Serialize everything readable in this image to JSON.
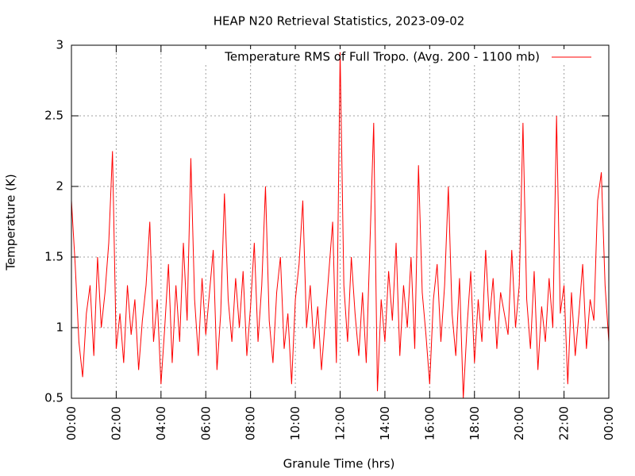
{
  "chart_data": {
    "type": "line",
    "title": "HEAP N20 Retrieval Statistics, 2023-09-02",
    "xlabel": "Granule Time (hrs)",
    "ylabel": "Temperature (K)",
    "x": [
      0,
      10,
      20,
      30,
      40,
      50,
      60,
      70,
      80,
      90,
      100,
      110,
      120,
      130,
      140,
      150,
      160,
      170,
      180,
      190,
      200,
      210,
      220,
      230,
      240,
      250,
      260,
      270,
      280,
      290,
      300,
      310,
      320,
      330,
      340,
      350,
      360,
      370,
      380,
      390,
      400,
      410,
      420,
      430,
      440,
      450,
      460,
      470,
      480,
      490,
      500,
      510,
      520,
      530,
      540,
      550,
      560,
      570,
      580,
      590,
      600,
      610,
      620,
      630,
      640,
      650,
      660,
      670,
      680,
      690,
      700,
      710,
      720,
      730,
      740,
      750,
      760,
      770,
      780,
      790,
      800,
      810,
      820,
      830,
      840,
      850,
      860,
      870,
      880,
      890,
      900,
      910,
      920,
      930,
      940,
      950,
      960,
      970,
      980,
      990,
      1000,
      1010,
      1020,
      1030,
      1040,
      1050,
      1060,
      1070,
      1080,
      1090,
      1100,
      1110,
      1120,
      1130,
      1140,
      1150,
      1160,
      1170,
      1180,
      1190,
      1200,
      1210,
      1220,
      1230,
      1240,
      1250,
      1260,
      1270,
      1280,
      1290,
      1300,
      1310,
      1320,
      1330,
      1340,
      1350,
      1360,
      1370,
      1380,
      1390,
      1400,
      1410,
      1420,
      1430,
      1440
    ],
    "series": [
      {
        "name": "Temperature RMS of Full Tropo. (Avg. 200 - 1100 mb)",
        "color": "#ff0000",
        "values": [
          1.9,
          1.45,
          0.9,
          0.65,
          1.1,
          1.3,
          0.8,
          1.5,
          1.0,
          1.25,
          1.6,
          2.25,
          0.85,
          1.1,
          0.75,
          1.3,
          0.95,
          1.2,
          0.7,
          1.05,
          1.3,
          1.75,
          0.9,
          1.2,
          0.6,
          1.0,
          1.45,
          0.75,
          1.3,
          0.9,
          1.6,
          1.05,
          2.2,
          1.2,
          0.8,
          1.35,
          0.95,
          1.25,
          1.55,
          0.7,
          1.1,
          1.95,
          1.2,
          0.9,
          1.35,
          1.0,
          1.4,
          0.8,
          1.15,
          1.6,
          0.9,
          1.3,
          2.0,
          1.05,
          0.75,
          1.25,
          1.5,
          0.85,
          1.1,
          0.6,
          1.2,
          1.45,
          1.9,
          1.0,
          1.3,
          0.85,
          1.15,
          0.7,
          1.05,
          1.4,
          1.75,
          0.75,
          2.95,
          1.3,
          0.9,
          1.5,
          1.1,
          0.8,
          1.25,
          0.75,
          1.6,
          2.45,
          0.55,
          1.2,
          0.9,
          1.4,
          1.05,
          1.6,
          0.8,
          1.3,
          1.0,
          1.5,
          0.85,
          2.15,
          1.25,
          0.95,
          0.6,
          1.2,
          1.45,
          0.9,
          1.3,
          2.0,
          1.1,
          0.8,
          1.35,
          0.5,
          1.0,
          1.4,
          0.75,
          1.2,
          0.9,
          1.55,
          1.05,
          1.35,
          0.85,
          1.25,
          1.1,
          0.95,
          1.55,
          1.0,
          1.3,
          2.45,
          1.2,
          0.85,
          1.4,
          0.7,
          1.15,
          0.9,
          1.35,
          1.0,
          2.5,
          1.1,
          1.3,
          0.6,
          1.25,
          0.8,
          1.1,
          1.45,
          0.85,
          1.2,
          1.05,
          1.9,
          2.1,
          1.3,
          0.9
        ]
      }
    ],
    "xlim": [
      0,
      1440
    ],
    "xticks": [
      {
        "value": 0,
        "label": "00:00"
      },
      {
        "value": 120,
        "label": "02:00"
      },
      {
        "value": 240,
        "label": "04:00"
      },
      {
        "value": 360,
        "label": "06:00"
      },
      {
        "value": 480,
        "label": "08:00"
      },
      {
        "value": 600,
        "label": "10:00"
      },
      {
        "value": 720,
        "label": "12:00"
      },
      {
        "value": 840,
        "label": "14:00"
      },
      {
        "value": 960,
        "label": "16:00"
      },
      {
        "value": 1080,
        "label": "18:00"
      },
      {
        "value": 1200,
        "label": "20:00"
      },
      {
        "value": 1320,
        "label": "22:00"
      },
      {
        "value": 1440,
        "label": "00:00"
      }
    ],
    "ylim": [
      0.5,
      3
    ],
    "yticks": [
      0.5,
      1,
      1.5,
      2,
      2.5,
      3
    ],
    "grid": true,
    "legend": "top-right"
  }
}
